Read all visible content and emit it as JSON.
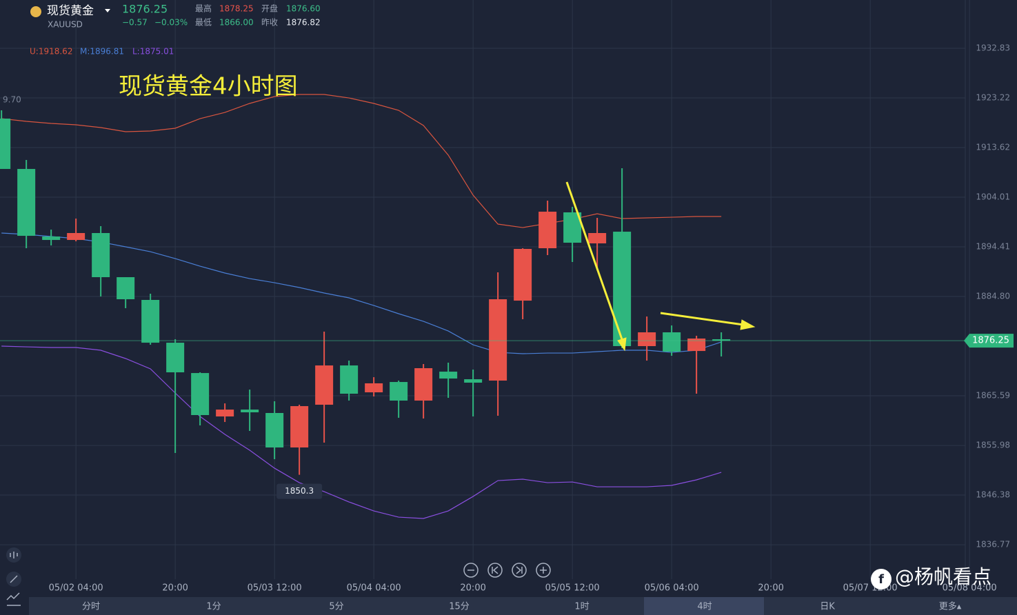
{
  "header": {
    "name": "现货黄金",
    "symbol": "XAUUSD",
    "price": "1876.25",
    "change": "−0.57",
    "change_pct": "−0.03%",
    "stats": [
      {
        "label": "最高",
        "value": "1878.25"
      },
      {
        "label": "开盘",
        "value": "1876.60"
      },
      {
        "label": "最低",
        "value": "1866.00"
      },
      {
        "label": "昨收",
        "value": "1876.82"
      }
    ]
  },
  "indicator": [
    "U:1918.62",
    "M:1896.81",
    "L:1875.01"
  ],
  "left_label": "9.70",
  "chart_data": {
    "type": "candlestick",
    "title": "现货黄金4小时图",
    "open": [
      1919.22,
      1909.48,
      1896.41,
      1895.74,
      1897.08,
      1888.54,
      1884.14,
      1875.86,
      1869.99,
      1861.59,
      1862.92,
      1862.26,
      1855.59,
      1863.86,
      1871.46,
      1866.26,
      1868.26,
      1864.66,
      1870.26,
      1868.79,
      1868.53,
      1884.0,
      1894.14,
      1901.08,
      1895.08,
      1897.34,
      1875.2,
      1877.87,
      1874.26,
      1876.53
    ],
    "close": [
      1909.48,
      1896.54,
      1895.74,
      1897.08,
      1888.54,
      1884.27,
      1875.86,
      1870.13,
      1861.86,
      1862.92,
      1862.39,
      1855.59,
      1863.59,
      1871.46,
      1865.99,
      1868.0,
      1864.66,
      1870.93,
      1868.93,
      1868.13,
      1884.27,
      1894.01,
      1901.21,
      1895.21,
      1897.08,
      1875.2,
      1877.87,
      1874.13,
      1876.67,
      1876.25
    ],
    "high": [
      1920.82,
      1911.22,
      1897.74,
      1899.88,
      1898.41,
      1888.54,
      1885.34,
      1876.53,
      1870.13,
      1864.12,
      1866.79,
      1864.53,
      1863.86,
      1878.0,
      1872.4,
      1869.19,
      1868.53,
      1871.73,
      1872.0,
      1870.66,
      1889.47,
      1894.14,
      1903.35,
      1902.15,
      1900.01,
      1909.62,
      1880.93,
      1879.2,
      1877.2,
      1877.87
    ],
    "low": [
      1909.48,
      1894.14,
      1894.68,
      1895.48,
      1884.8,
      1882.54,
      1875.46,
      1854.52,
      1859.86,
      1860.52,
      1858.79,
      1853.32,
      1850.3,
      1856.52,
      1864.66,
      1865.46,
      1861.33,
      1861.19,
      1865.19,
      1861.59,
      1861.72,
      1880.4,
      1892.81,
      1891.47,
      1889.87,
      1874.8,
      1872.4,
      1873.33,
      1865.99,
      1873.2
    ],
    "up_color": "#e8534a",
    "down_color": "#2fb67e",
    "lines": [
      {
        "color": "#d9553f",
        "values": [
          1919.22,
          1918.69,
          1918.29,
          1918.02,
          1917.49,
          1916.69,
          1916.82,
          1917.36,
          1919.22,
          1920.42,
          1922.16,
          1923.49,
          1923.89,
          1923.89,
          1923.22,
          1922.16,
          1920.82,
          1917.89,
          1912.16,
          1904.41,
          1898.81,
          1898.14,
          1898.94,
          1899.74,
          1900.81,
          1899.88,
          1900.01,
          1900.14,
          1900.28,
          1900.28
        ]
      },
      {
        "color": "#4a7fd6",
        "values": [
          1897.08,
          1896.81,
          1896.41,
          1896.01,
          1895.34,
          1894.41,
          1893.47,
          1892.14,
          1890.67,
          1889.34,
          1888.27,
          1887.47,
          1886.54,
          1885.47,
          1884.54,
          1883.07,
          1881.47,
          1880.0,
          1878.13,
          1875.46,
          1873.99,
          1873.73,
          1873.86,
          1873.86,
          1874.13,
          1874.4,
          1874.4,
          1873.99,
          1874.4,
          1876.0
        ]
      },
      {
        "color": "#8a4fe0",
        "values": [
          1875.2,
          1875.06,
          1874.93,
          1874.93,
          1874.4,
          1872.8,
          1870.8,
          1866.13,
          1861.59,
          1858.12,
          1855.05,
          1851.58,
          1848.78,
          1847.05,
          1845.05,
          1843.31,
          1842.11,
          1841.85,
          1843.31,
          1846.11,
          1849.18,
          1849.45,
          1848.78,
          1848.91,
          1847.98,
          1847.98,
          1847.98,
          1848.25,
          1849.32,
          1850.78
        ]
      }
    ],
    "current": 1876.25,
    "xlim": [
      -0.06,
      38.83
    ],
    "xticks": [
      {
        "value": 3,
        "label": "05/02 04:00"
      },
      {
        "value": 7,
        "label": "20:00"
      },
      {
        "value": 11,
        "label": "05/03 12:00"
      },
      {
        "value": 15,
        "label": "05/04 04:00"
      },
      {
        "value": 19,
        "label": "20:00"
      },
      {
        "value": 23,
        "label": "05/05 12:00"
      },
      {
        "value": 27,
        "label": "05/06 04:00"
      },
      {
        "value": 31,
        "label": "20:00"
      },
      {
        "value": 35,
        "label": "05/07 12:00"
      },
      {
        "value": 39,
        "label": "05/08 04:00"
      }
    ],
    "ylim": [
      1830.11,
      1942.17
    ],
    "yticks": [
      1836.77,
      1846.38,
      1855.98,
      1865.59,
      {
        "value": 1884.8,
        "label": "1884.80"
      },
      1894.41,
      1904.01,
      1913.62,
      1923.22,
      1932.83
    ],
    "grid": true
  },
  "tabs": [
    "分时",
    "1分",
    "5分",
    "15分",
    "1时",
    "4时",
    "日K",
    "更多▴"
  ],
  "watermark": "@杨帆看点"
}
